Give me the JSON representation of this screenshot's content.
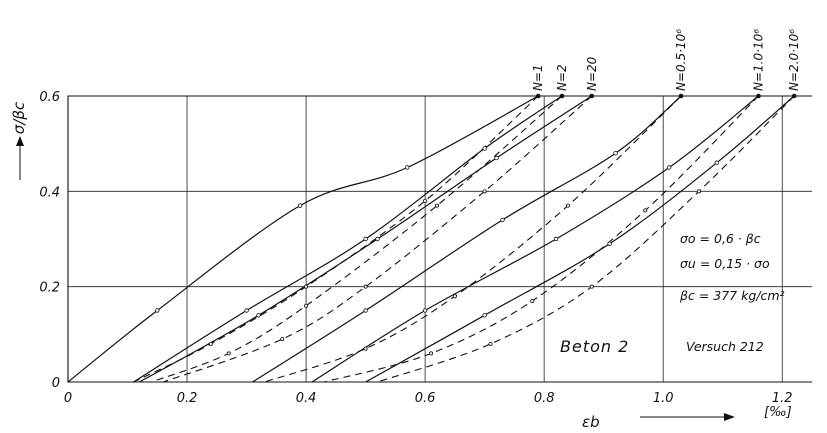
{
  "chart_data": {
    "type": "line",
    "title": "",
    "xlabel": "εb",
    "xunit": "[‰]",
    "ylabel": "σ/βc",
    "xlim": [
      0,
      1.25
    ],
    "ylim": [
      0,
      0.6
    ],
    "x_ticks": [
      0,
      0.2,
      0.4,
      0.6,
      0.8,
      1.0,
      1.2
    ],
    "x_tick_labels": [
      "0",
      "0.2",
      "0.4",
      "0.6",
      "0.8",
      "1.0",
      "1.2"
    ],
    "y_ticks": [
      0,
      0.2,
      0.4,
      0.6
    ],
    "y_tick_labels": [
      "0",
      "0.2",
      "0.4",
      "0.6"
    ],
    "grid": true,
    "series": [
      {
        "name": "N=1",
        "loading": [
          [
            0,
            0
          ],
          [
            0.15,
            0.15
          ],
          [
            0.39,
            0.37
          ],
          [
            0.57,
            0.45
          ],
          [
            0.79,
            0.6
          ]
        ],
        "unloading": [
          [
            0.79,
            0.6
          ],
          [
            0.6,
            0.38
          ],
          [
            0.4,
            0.2
          ],
          [
            0.24,
            0.08
          ],
          [
            0.11,
            0
          ]
        ]
      },
      {
        "name": "N=2",
        "loading": [
          [
            0.11,
            0
          ],
          [
            0.3,
            0.15
          ],
          [
            0.5,
            0.3
          ],
          [
            0.7,
            0.49
          ],
          [
            0.83,
            0.6
          ]
        ],
        "unloading": [
          [
            0.83,
            0.6
          ],
          [
            0.62,
            0.37
          ],
          [
            0.4,
            0.16
          ],
          [
            0.27,
            0.06
          ],
          [
            0.14,
            0
          ]
        ]
      },
      {
        "name": "N=20",
        "loading": [
          [
            0.12,
            0
          ],
          [
            0.32,
            0.14
          ],
          [
            0.52,
            0.3
          ],
          [
            0.72,
            0.47
          ],
          [
            0.88,
            0.6
          ]
        ],
        "unloading": [
          [
            0.88,
            0.6
          ],
          [
            0.7,
            0.4
          ],
          [
            0.5,
            0.2
          ],
          [
            0.36,
            0.09
          ],
          [
            0.16,
            0
          ]
        ]
      },
      {
        "name": "N=0.5·10⁶",
        "loading": [
          [
            0.31,
            0
          ],
          [
            0.5,
            0.15
          ],
          [
            0.73,
            0.34
          ],
          [
            0.92,
            0.48
          ],
          [
            1.03,
            0.6
          ]
        ],
        "unloading": [
          [
            1.03,
            0.6
          ],
          [
            0.84,
            0.37
          ],
          [
            0.65,
            0.18
          ],
          [
            0.5,
            0.07
          ],
          [
            0.33,
            0
          ]
        ]
      },
      {
        "name": "N=1.0·10⁶",
        "loading": [
          [
            0.41,
            0
          ],
          [
            0.6,
            0.15
          ],
          [
            0.82,
            0.3
          ],
          [
            1.01,
            0.45
          ],
          [
            1.16,
            0.6
          ]
        ],
        "unloading": [
          [
            1.16,
            0.6
          ],
          [
            0.97,
            0.36
          ],
          [
            0.78,
            0.17
          ],
          [
            0.61,
            0.06
          ],
          [
            0.43,
            0
          ]
        ]
      },
      {
        "name": "N=2.0·10⁶",
        "loading": [
          [
            0.5,
            0
          ],
          [
            0.7,
            0.14
          ],
          [
            0.91,
            0.29
          ],
          [
            1.09,
            0.46
          ],
          [
            1.22,
            0.6
          ]
        ],
        "unloading": [
          [
            1.22,
            0.6
          ],
          [
            1.06,
            0.4
          ],
          [
            0.88,
            0.2
          ],
          [
            0.71,
            0.08
          ],
          [
            0.52,
            0
          ]
        ]
      }
    ],
    "annotations": {
      "sigma_o": "σo = 0,6 · βc",
      "sigma_u": "σu = 0,15 · σo",
      "beta_c": "βc = 377 kg/cm²",
      "material": "Beton 2",
      "test": "Versuch 212"
    }
  }
}
